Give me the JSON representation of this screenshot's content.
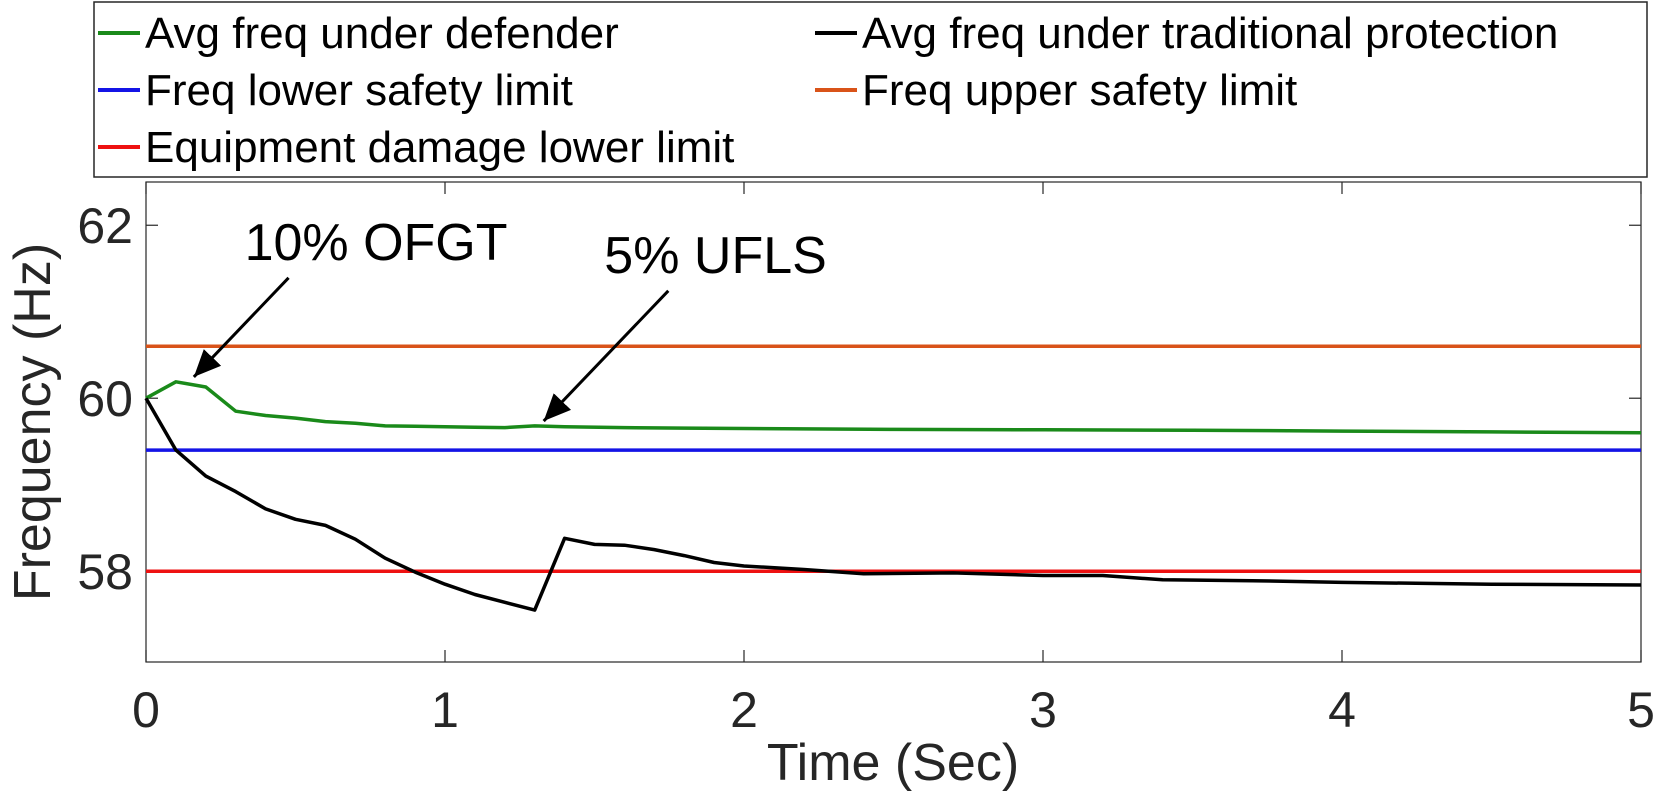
{
  "chart_data": {
    "type": "line",
    "title": "",
    "xlabel": "Time (Sec)",
    "ylabel": "Frequency (Hz)",
    "xlim": [
      0,
      5
    ],
    "ylim": [
      56.95,
      62.5
    ],
    "xticks": [
      0,
      1,
      2,
      3,
      4,
      5
    ],
    "xtick_labels": [
      "0",
      "1",
      "2",
      "3",
      "4",
      "5"
    ],
    "yticks": [
      58,
      60,
      62
    ],
    "ytick_labels": [
      "58",
      "60",
      "62"
    ],
    "grid": false,
    "legend_position": "top",
    "series": [
      {
        "name": "Avg freq under defender",
        "color": "#1a8a1a",
        "x": [
          0,
          0.1,
          0.2,
          0.3,
          0.4,
          0.5,
          0.6,
          0.7,
          0.8,
          0.9,
          1.0,
          1.1,
          1.2,
          1.3,
          1.4,
          1.6,
          1.8,
          2.0,
          2.5,
          3.0,
          3.5,
          4.0,
          4.5,
          5.0
        ],
        "y": [
          60.0,
          60.19,
          60.13,
          59.85,
          59.8,
          59.77,
          59.73,
          59.71,
          59.68,
          59.675,
          59.67,
          59.665,
          59.66,
          59.68,
          59.67,
          59.66,
          59.655,
          59.65,
          59.64,
          59.635,
          59.63,
          59.62,
          59.61,
          59.6
        ]
      },
      {
        "name": "Avg freq under traditional protection",
        "color": "#000000",
        "x": [
          0,
          0.1,
          0.2,
          0.3,
          0.4,
          0.5,
          0.6,
          0.7,
          0.8,
          0.9,
          1.0,
          1.1,
          1.2,
          1.3,
          1.4,
          1.5,
          1.6,
          1.7,
          1.8,
          1.9,
          2.0,
          2.2,
          2.4,
          2.7,
          3.0,
          3.2,
          3.4,
          3.7,
          4.0,
          4.5,
          5.0
        ],
        "y": [
          60.0,
          59.4,
          59.1,
          58.92,
          58.72,
          58.6,
          58.53,
          58.37,
          58.15,
          57.99,
          57.85,
          57.73,
          57.64,
          57.55,
          58.38,
          58.31,
          58.3,
          58.25,
          58.18,
          58.1,
          58.06,
          58.02,
          57.97,
          57.98,
          57.95,
          57.95,
          57.9,
          57.89,
          57.87,
          57.85,
          57.84
        ]
      },
      {
        "name": "Freq lower safety limit",
        "color": "#1414e6",
        "x": [
          0,
          5
        ],
        "y": [
          59.4,
          59.4
        ]
      },
      {
        "name": "Freq upper safety limit",
        "color": "#d95319",
        "x": [
          0,
          5
        ],
        "y": [
          60.6,
          60.6
        ]
      },
      {
        "name": "Equipment damage lower limit",
        "color": "#ee1111",
        "x": [
          0,
          5
        ],
        "y": [
          58.0,
          58.0
        ]
      }
    ],
    "annotations": [
      {
        "text": "10% OFGT",
        "point_x": 0.14,
        "point_y": 60.2,
        "text_x": 0.43,
        "text_y": 61.6
      },
      {
        "text": "5% UFLS",
        "point_x": 1.31,
        "point_y": 59.69,
        "text_x": 1.7,
        "text_y": 61.45
      }
    ]
  }
}
